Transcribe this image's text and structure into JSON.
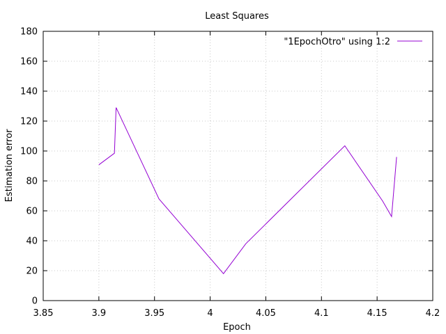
{
  "chart_data": {
    "type": "line",
    "title": "Least Squares",
    "xlabel": "Epoch",
    "ylabel": "Estimation error",
    "xlim": [
      3.85,
      4.2
    ],
    "ylim": [
      0,
      180
    ],
    "xticks": [
      "3.85",
      "3.9",
      "3.95",
      "4",
      "4.05",
      "4.1",
      "4.15",
      "4.2"
    ],
    "xtick_values": [
      3.85,
      3.9,
      3.95,
      4.0,
      4.05,
      4.1,
      4.15,
      4.2
    ],
    "yticks": [
      "0",
      "20",
      "40",
      "60",
      "80",
      "100",
      "120",
      "140",
      "160",
      "180"
    ],
    "ytick_values": [
      0,
      20,
      40,
      60,
      80,
      100,
      120,
      140,
      160,
      180
    ],
    "grid": true,
    "legend_position": "top-right",
    "series": [
      {
        "name": "\"1EpochOtro\" using 1:2",
        "color": "#9400d3",
        "points": [
          [
            3.9,
            90.8
          ],
          [
            3.914,
            98.5
          ],
          [
            3.9155,
            129.0
          ],
          [
            3.954,
            68.0
          ],
          [
            4.012,
            18.0
          ],
          [
            4.032,
            38.0
          ],
          [
            4.121,
            103.5
          ],
          [
            4.155,
            66.5
          ],
          [
            4.163,
            56.2
          ],
          [
            4.1675,
            96.0
          ]
        ]
      }
    ]
  }
}
